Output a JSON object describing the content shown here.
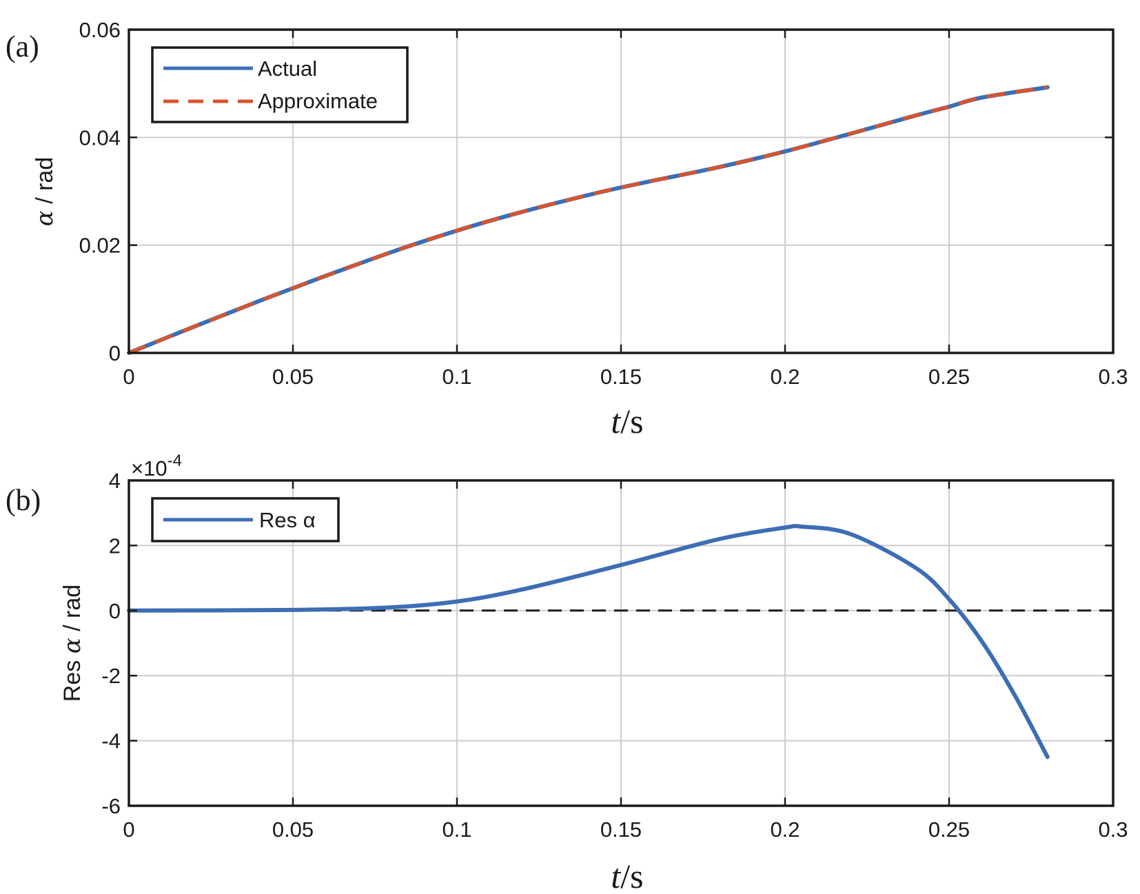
{
  "chart_data": [
    {
      "type": "line",
      "panel_label": "(a)",
      "ylabel": {
        "symbol": "α",
        "text": " / rad"
      },
      "xlabel": {
        "var": "t",
        "unit": "/s"
      },
      "xlim": [
        0,
        0.3
      ],
      "ylim": [
        0,
        0.06
      ],
      "xticks": [
        "0",
        "0.05",
        "0.1",
        "0.15",
        "0.2",
        "0.25",
        "0.3"
      ],
      "yticks": [
        "0",
        "0.02",
        "0.04",
        "0.06"
      ],
      "grid": true,
      "legend_position": "top-left",
      "colors": {
        "actual": "#3d6eb4",
        "approximate": "#d9542b"
      },
      "x": [
        0,
        0.02,
        0.04,
        0.05,
        0.06,
        0.08,
        0.1,
        0.12,
        0.14,
        0.15,
        0.16,
        0.18,
        0.2,
        0.22,
        0.24,
        0.25,
        0.26,
        0.28
      ],
      "series": [
        {
          "name": "Actual",
          "style": "solid",
          "values": [
            0,
            0.0049,
            0.0097,
            0.012,
            0.0143,
            0.0187,
            0.0227,
            0.0262,
            0.0293,
            0.0307,
            0.032,
            0.0345,
            0.0374,
            0.0407,
            0.0441,
            0.0457,
            0.0474,
            0.0493
          ]
        },
        {
          "name": "Approximate",
          "style": "dashed",
          "values": [
            0,
            0.0049,
            0.0097,
            0.012,
            0.0143,
            0.0187,
            0.0227,
            0.0262,
            0.0293,
            0.0307,
            0.032,
            0.0345,
            0.0374,
            0.0407,
            0.0441,
            0.0457,
            0.0474,
            0.0493
          ]
        }
      ]
    },
    {
      "type": "line",
      "panel_label": "(b)",
      "ylabel": {
        "prefix": "Res ",
        "symbol": "α",
        "text": " / rad"
      },
      "xlabel": {
        "var": "t",
        "unit": "/s"
      },
      "xlim": [
        0,
        0.3
      ],
      "ylim": [
        -6,
        4
      ],
      "y_multiplier": {
        "base": "×10",
        "exp": "-4"
      },
      "xticks": [
        "0",
        "0.05",
        "0.1",
        "0.15",
        "0.2",
        "0.25",
        "0.3"
      ],
      "yticks": [
        "-6",
        "-4",
        "-2",
        "0",
        "2",
        "4"
      ],
      "grid": true,
      "legend_position": "top-left",
      "reference_line": {
        "y": 0,
        "style": "dashed",
        "color": "#1a1a1a"
      },
      "colors": {
        "res": "#3d6eb4"
      },
      "x": [
        0,
        0.05,
        0.08,
        0.1,
        0.12,
        0.15,
        0.18,
        0.2,
        0.205,
        0.22,
        0.24,
        0.25,
        0.26,
        0.27,
        0.28
      ],
      "series": [
        {
          "name": "Res α",
          "style": "solid",
          "values": [
            0,
            0.02,
            0.1,
            0.28,
            0.65,
            1.4,
            2.2,
            2.55,
            2.58,
            2.35,
            1.3,
            0.35,
            -0.95,
            -2.6,
            -4.5
          ]
        }
      ]
    }
  ]
}
